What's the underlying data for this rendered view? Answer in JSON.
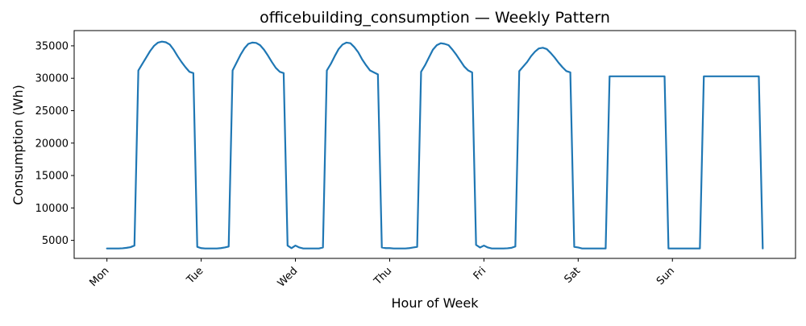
{
  "chart_data": {
    "type": "line",
    "title": "officebuilding_consumption — Weekly Pattern",
    "xlabel": "Hour of Week",
    "ylabel": "Consumption (Wh)",
    "x_ticks": [
      {
        "value": 0,
        "label": "Mon"
      },
      {
        "value": 24,
        "label": "Tue"
      },
      {
        "value": 48,
        "label": "Wed"
      },
      {
        "value": 72,
        "label": "Thu"
      },
      {
        "value": 96,
        "label": "Fri"
      },
      {
        "value": 120,
        "label": "Sat"
      },
      {
        "value": 144,
        "label": "Sun"
      }
    ],
    "y_ticks": [
      5000,
      10000,
      15000,
      20000,
      25000,
      30000,
      35000
    ],
    "xlim": [
      -8.35,
      175.35
    ],
    "ylim": [
      2220,
      37350
    ],
    "grid": false,
    "legend": "none",
    "color": "#1f77b4",
    "series": [
      {
        "x": [
          0,
          1,
          2,
          3,
          4,
          5,
          6,
          7,
          8,
          9,
          10,
          11,
          12,
          13,
          14,
          15,
          16,
          17,
          18,
          19,
          20,
          21,
          22,
          23,
          24,
          25,
          26,
          27,
          28,
          29,
          30,
          31,
          32,
          33,
          34,
          35,
          36,
          37,
          38,
          39,
          40,
          41,
          42,
          43,
          44,
          45,
          46,
          47,
          48,
          49,
          50,
          51,
          52,
          53,
          54,
          55,
          56,
          57,
          58,
          59,
          60,
          61,
          62,
          63,
          64,
          65,
          66,
          67,
          68,
          69,
          70,
          71,
          72,
          73,
          74,
          75,
          76,
          77,
          78,
          79,
          80,
          81,
          82,
          83,
          84,
          85,
          86,
          87,
          88,
          89,
          90,
          91,
          92,
          93,
          94,
          95,
          96,
          97,
          98,
          99,
          100,
          101,
          102,
          103,
          104,
          105,
          106,
          107,
          108,
          109,
          110,
          111,
          112,
          113,
          114,
          115,
          116,
          117,
          118,
          119,
          120,
          121,
          122,
          123,
          124,
          125,
          126,
          127,
          128,
          129,
          130,
          131,
          132,
          133,
          134,
          135,
          136,
          137,
          138,
          139,
          140,
          141,
          142,
          143,
          144,
          145,
          146,
          147,
          148,
          149,
          150,
          151,
          152,
          153,
          154,
          155,
          156,
          157,
          158,
          159,
          160,
          161,
          162,
          163,
          164,
          165,
          166,
          167
        ],
        "y": [
          3750,
          3750,
          3750,
          3750,
          3780,
          3850,
          3950,
          4200,
          31200,
          32200,
          33200,
          34200,
          35000,
          35500,
          35650,
          35550,
          35200,
          34400,
          33400,
          32500,
          31700,
          31000,
          30800,
          4000,
          3800,
          3750,
          3750,
          3750,
          3750,
          3800,
          3900,
          4050,
          31200,
          32400,
          33600,
          34600,
          35300,
          35500,
          35450,
          35100,
          34400,
          33500,
          32500,
          31600,
          31000,
          30800,
          4200,
          3800,
          4200,
          3900,
          3750,
          3750,
          3750,
          3750,
          3750,
          3900,
          31200,
          32200,
          33400,
          34500,
          35200,
          35500,
          35400,
          34800,
          34000,
          32900,
          32000,
          31200,
          30900,
          30600,
          3900,
          3800,
          3800,
          3750,
          3750,
          3750,
          3750,
          3800,
          3900,
          4000,
          31000,
          32000,
          33200,
          34400,
          35100,
          35400,
          35300,
          35100,
          34400,
          33600,
          32700,
          31800,
          31200,
          30900,
          4300,
          3900,
          4200,
          3900,
          3750,
          3750,
          3750,
          3750,
          3780,
          3850,
          4050,
          31100,
          31800,
          32500,
          33400,
          34100,
          34600,
          34700,
          34500,
          33900,
          33200,
          32400,
          31700,
          31100,
          30900,
          4000,
          3900,
          3750,
          3750,
          3750,
          3750,
          3750,
          3750,
          3750,
          30300,
          30300,
          30300,
          30300,
          30300,
          30300,
          30300,
          30300,
          30300,
          30300,
          30300,
          30300,
          30300,
          30300,
          30300,
          3750,
          3750,
          3750,
          3750,
          3750,
          3750,
          3750,
          3750,
          3750,
          30300,
          30300,
          30300,
          30300,
          30300,
          30300,
          30300,
          30300,
          30300,
          30300,
          30300,
          30300,
          30300,
          30300,
          30300,
          3750
        ]
      }
    ]
  }
}
